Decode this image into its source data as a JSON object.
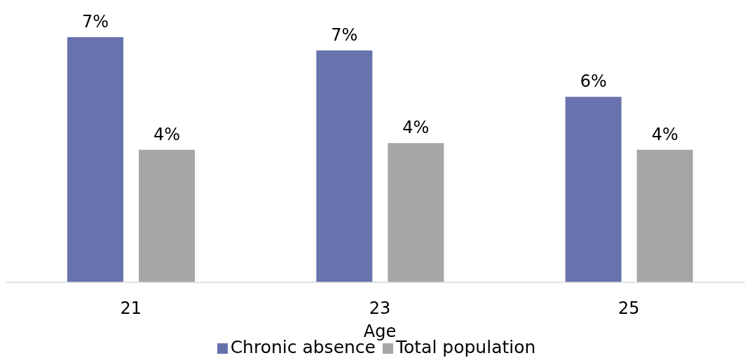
{
  "chart_data": {
    "type": "bar",
    "xlabel": "Age",
    "categories": [
      "21",
      "23",
      "25"
    ],
    "series": [
      {
        "name": "Chronic absence",
        "color": "#6873ad",
        "values": [
          7.4,
          7.0,
          5.6
        ],
        "value_labels": [
          "7%",
          "7%",
          "6%"
        ]
      },
      {
        "name": "Total population",
        "color": "#a6a6a6",
        "values": [
          4.0,
          4.2,
          4.0
        ],
        "value_labels": [
          "4%",
          "4%",
          "4%"
        ]
      }
    ],
    "legend": "bottom",
    "grid": false
  }
}
